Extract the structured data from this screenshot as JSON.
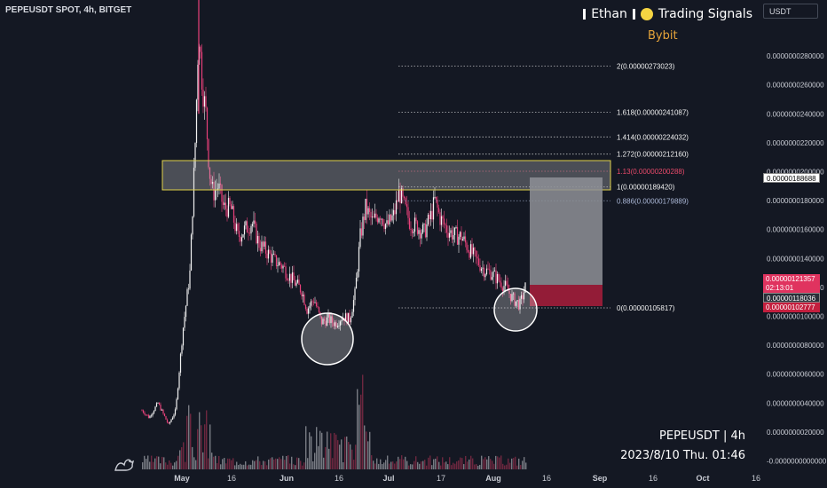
{
  "header": {
    "title": "PEPEUSDT SPOT, 4h, BITGET",
    "brand_name": "Ethan",
    "brand_tagline": "Trading Signals",
    "currency": "USDT"
  },
  "overlay": {
    "exchange_label": "Bybit",
    "symbol_interval": "PEPEUSDT | 4h",
    "datetime": "2023/8/10 Thu. 01:46"
  },
  "price_axis": {
    "labels": [
      "0.0000000280000",
      "0.0000000260000",
      "0.0000000240000",
      "0.0000000220000",
      "0.0000000200000",
      "0.0000000180000",
      "0.0000000160000",
      "0.0000000140000",
      "0.0000000120000",
      "0.0000000100000",
      "0.0000000080000",
      "0.0000000060000",
      "0.0000000040000",
      "0.0000000020000",
      "-0.0000000000000"
    ]
  },
  "time_axis": {
    "labels": [
      "May",
      "16",
      "Jun",
      "16",
      "Jul",
      "17",
      "Aug",
      "16",
      "Sep",
      "16",
      "Oct",
      "16"
    ]
  },
  "price_tags": {
    "zone_top": "0.00000188688",
    "current_price": "0.00000121357",
    "countdown": "02:13:01",
    "stop_level": "0.00000118036",
    "low_level": "0.00000102777"
  },
  "fib_levels": [
    {
      "label": "2(0.00000273023)",
      "value": 2.73023
    },
    {
      "label": "1.618(0.00000241087)",
      "value": 2.41087
    },
    {
      "label": "1.414(0.00000224032)",
      "value": 2.24032
    },
    {
      "label": "1.272(0.00000212160)",
      "value": 2.1216
    },
    {
      "label": "1.13(0.00000200288)",
      "value": 2.00288
    },
    {
      "label": "1(0.00000189420)",
      "value": 1.8942
    },
    {
      "label": "0.886(0.00000179889)",
      "value": 1.79889
    },
    {
      "label": "0(0.00000105817)",
      "value": 1.05817
    }
  ],
  "colors": {
    "background": "#141823",
    "candle_up": "#f2f2f2",
    "candle_down": "#e8407a",
    "zone_border": "#e2d24a",
    "target_box": "#8e9096",
    "stop_box": "#a11d3a",
    "fib_main": "#f0f0f0",
    "fib_red": "#e84a6a",
    "fib_blue": "#aab7d6",
    "current_price_tag": "#e0335f"
  }
}
